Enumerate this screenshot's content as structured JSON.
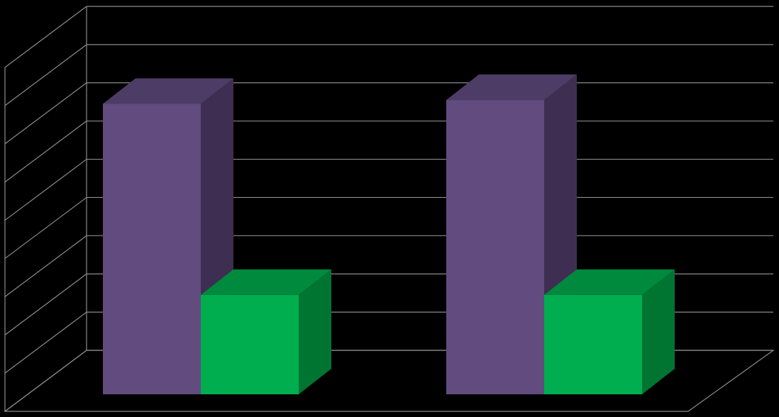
{
  "chart_data": {
    "type": "bar",
    "style": "3d-clustered-column",
    "categories": [
      "",
      ""
    ],
    "series": [
      {
        "values": [
          7.6,
          7.7
        ]
      },
      {
        "values": [
          2.6,
          2.6
        ]
      }
    ],
    "ylim": [
      0,
      9
    ],
    "grid": true,
    "legend": "none",
    "title": "",
    "xlabel": "",
    "ylabel": ""
  },
  "colors": {
    "background": "#000000",
    "grid": "#8c8c8c",
    "series": [
      {
        "front": "#614b7f",
        "top": "#4d3c66",
        "side": "#3e2f52"
      },
      {
        "front": "#00ae4f",
        "top": "#008a3e",
        "side": "#007532"
      }
    ]
  }
}
